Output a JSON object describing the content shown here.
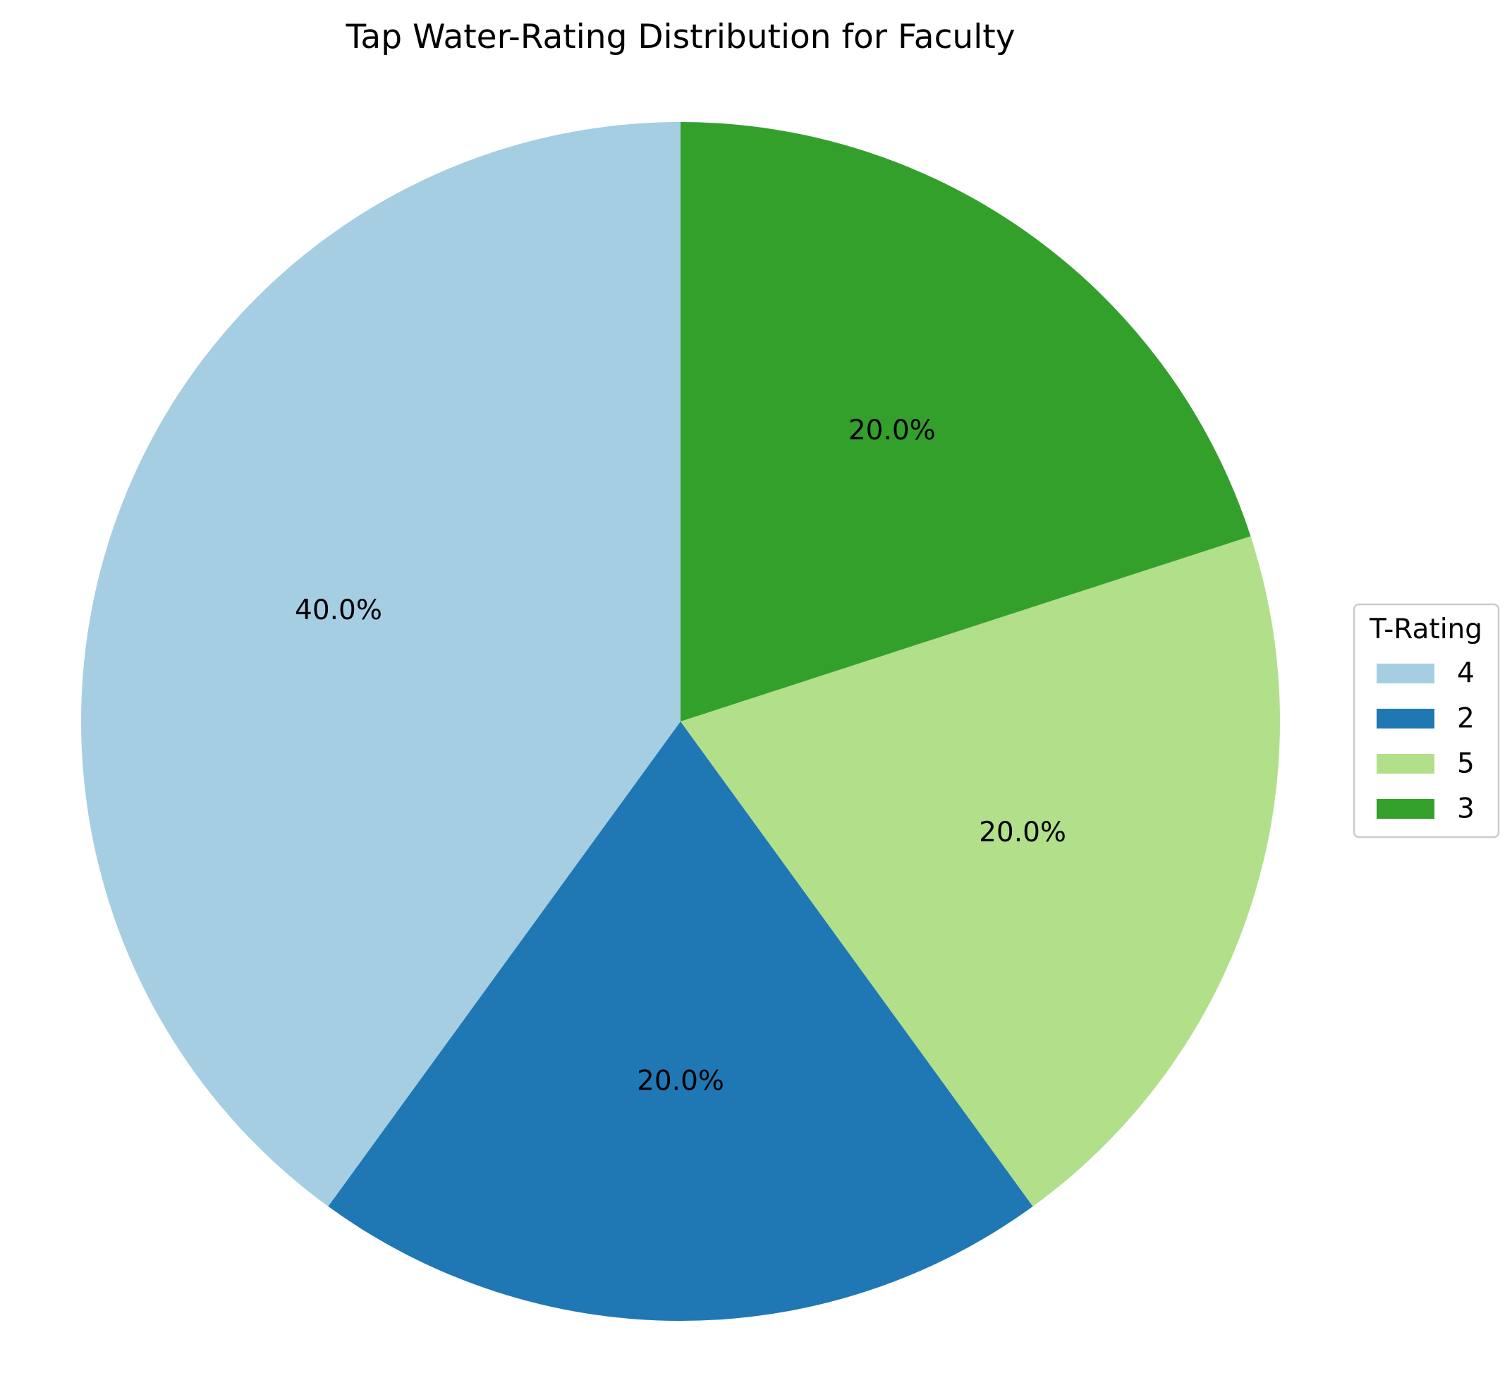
{
  "chart_data": {
    "type": "pie",
    "title": "Tap Water-Rating Distribution for Faculty",
    "categories": [
      "4",
      "2",
      "5",
      "3"
    ],
    "values": [
      40.0,
      20.0,
      20.0,
      20.0
    ],
    "labels": [
      "40.0%",
      "20.0%",
      "20.0%",
      "20.0%"
    ],
    "colors": [
      "#a6cee3",
      "#1f78b4",
      "#b2df8a",
      "#33a02c"
    ],
    "start_angle_deg": 90,
    "direction": "counterclockwise",
    "legend": {
      "title": "T-Rating",
      "placement": "center-right",
      "entries": [
        "4",
        "2",
        "5",
        "3"
      ]
    }
  }
}
